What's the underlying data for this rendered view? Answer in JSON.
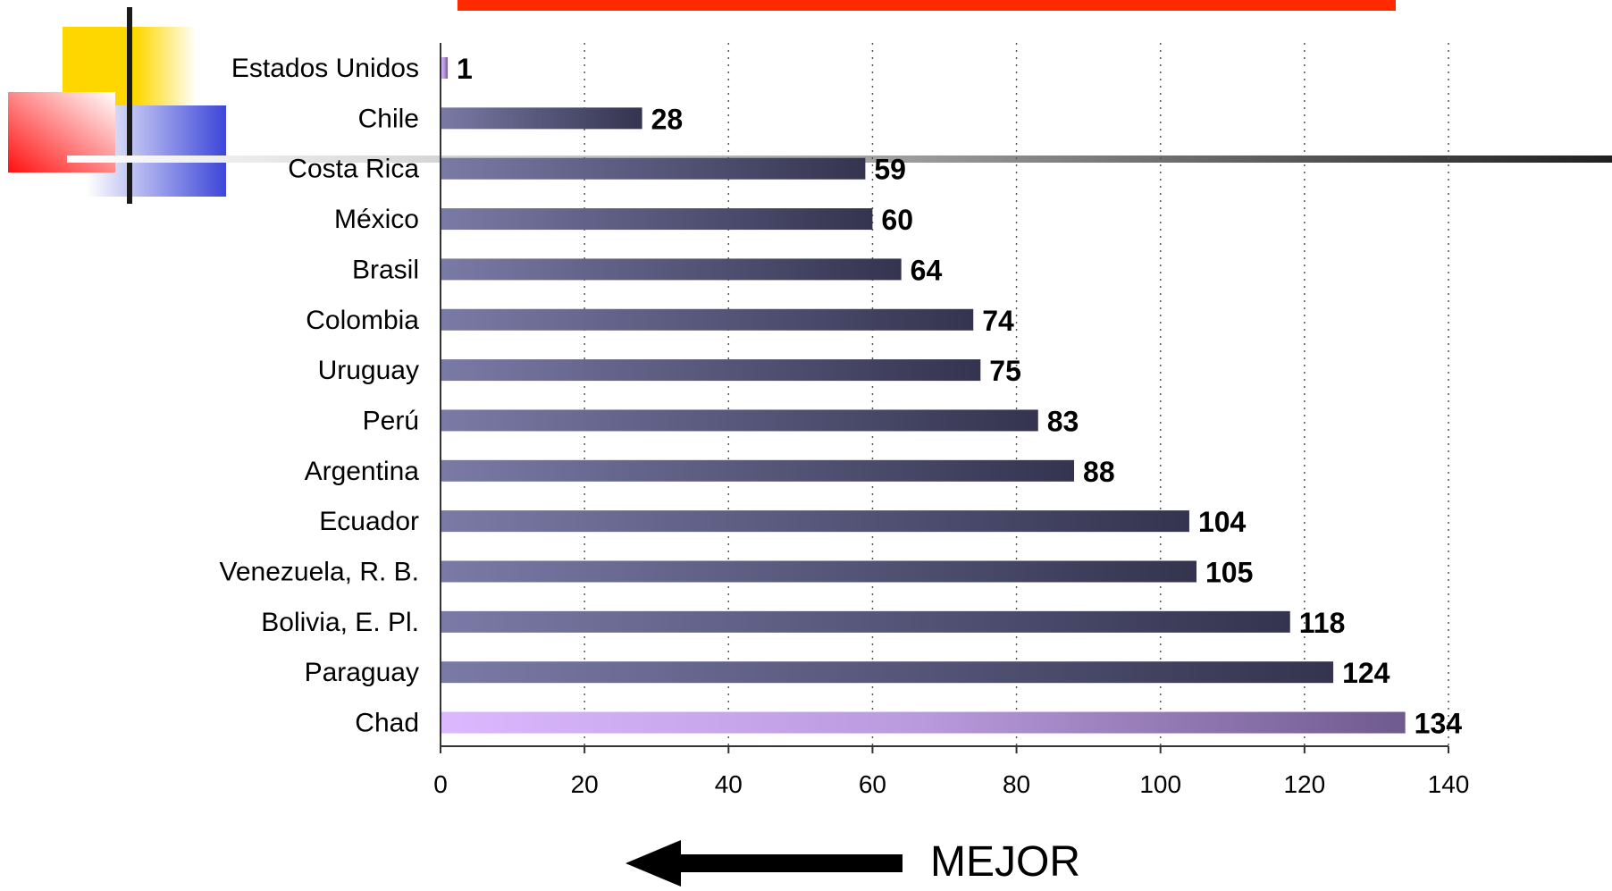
{
  "footer": {
    "label": "MEJOR"
  },
  "chart_data": {
    "type": "bar",
    "orientation": "horizontal",
    "categories": [
      "Estados Unidos",
      "Chile",
      "Costa Rica",
      "México",
      "Brasil",
      "Colombia",
      "Uruguay",
      "Perú",
      "Argentina",
      "Ecuador",
      "Venezuela, R. B.",
      "Bolivia, E. Pl.",
      "Paraguay",
      "Chad"
    ],
    "values": [
      1,
      28,
      59,
      60,
      64,
      74,
      75,
      83,
      88,
      104,
      105,
      118,
      124,
      134
    ],
    "xlim": [
      0,
      140
    ],
    "xticks": [
      0,
      20,
      40,
      60,
      80,
      100,
      120,
      140
    ],
    "grid": "vertical dotted",
    "legend": "none",
    "colors": {
      "bar_dark_start": "#7a7aa6",
      "bar_dark_end": "#34344f",
      "bar_light_start": "#dcb8ff",
      "bar_light_end": "#6f5a8e",
      "top_bar": "#ff2a00",
      "deco_yellow": "#ffd700",
      "deco_blue": "#3c46d8",
      "deco_red": "#ff2020"
    }
  }
}
